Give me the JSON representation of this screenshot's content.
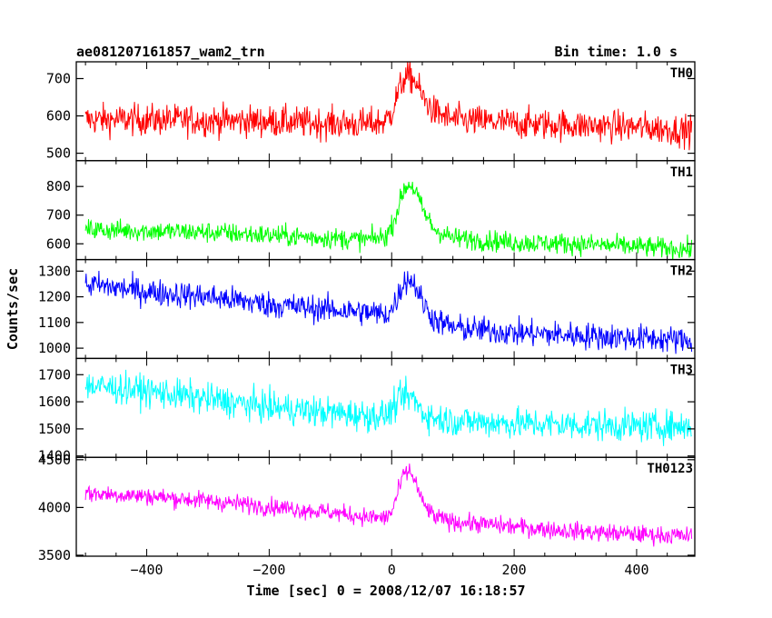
{
  "header": {
    "title": "ae081207161857_wam2_trn",
    "bin_time": "Bin time: 1.0 s"
  },
  "chart_data": {
    "type": "line",
    "xlabel": "Time [sec] 0 = 2008/12/07 16:18:57",
    "ylabel": "Counts/sec",
    "xlim": [
      -515,
      495
    ],
    "x_ticks": [
      -400,
      -200,
      0,
      200,
      400
    ],
    "x_tick_labels": [
      "−400",
      "−200",
      "0",
      "200",
      "400"
    ],
    "grid": false,
    "panels": [
      {
        "label": "TH0",
        "color": "#ff0000",
        "ylim": [
          480,
          745
        ],
        "ticks": [
          500,
          600,
          700
        ],
        "x": [
          -500,
          -400,
          -300,
          -200,
          -100,
          -40,
          -10,
          0,
          10,
          20,
          30,
          40,
          50,
          70,
          100,
          200,
          300,
          400,
          490
        ],
        "y": [
          590,
          590,
          588,
          585,
          580,
          578,
          585,
          610,
          660,
          700,
          705,
          690,
          650,
          610,
          590,
          580,
          575,
          570,
          560
        ],
        "noise": 40
      },
      {
        "label": "TH1",
        "color": "#00ff00",
        "ylim": [
          545,
          890
        ],
        "ticks": [
          600,
          700,
          800
        ],
        "x": [
          -500,
          -400,
          -300,
          -200,
          -100,
          -40,
          -10,
          0,
          10,
          20,
          30,
          40,
          50,
          70,
          100,
          200,
          300,
          400,
          490
        ],
        "y": [
          650,
          645,
          640,
          630,
          620,
          615,
          625,
          660,
          720,
          790,
          810,
          780,
          720,
          650,
          620,
          605,
          600,
          590,
          580
        ],
        "noise": 35
      },
      {
        "label": "TH2",
        "color": "#0000ff",
        "ylim": [
          960,
          1345
        ],
        "ticks": [
          1000,
          1100,
          1200,
          1300
        ],
        "x": [
          -500,
          -400,
          -300,
          -200,
          -100,
          -40,
          -10,
          0,
          10,
          20,
          30,
          40,
          50,
          70,
          100,
          200,
          300,
          400,
          490
        ],
        "y": [
          1250,
          1220,
          1200,
          1170,
          1150,
          1140,
          1130,
          1150,
          1200,
          1260,
          1270,
          1240,
          1180,
          1110,
          1080,
          1060,
          1050,
          1040,
          1030
        ],
        "noise": 50
      },
      {
        "label": "TH3",
        "color": "#00ffff",
        "ylim": [
          1395,
          1760
        ],
        "ticks": [
          1400,
          1500,
          1600,
          1700
        ],
        "x": [
          -500,
          -400,
          -300,
          -200,
          -100,
          -40,
          -10,
          0,
          10,
          20,
          30,
          40,
          50,
          70,
          100,
          200,
          300,
          400,
          490
        ],
        "y": [
          1660,
          1640,
          1610,
          1580,
          1560,
          1550,
          1550,
          1570,
          1600,
          1620,
          1620,
          1600,
          1560,
          1540,
          1530,
          1520,
          1515,
          1510,
          1510
        ],
        "noise": 55
      },
      {
        "label": "TH0123",
        "color": "#ff00ff",
        "ylim": [
          3490,
          4525
        ],
        "ticks": [
          3500,
          4000,
          4500
        ],
        "x": [
          -500,
          -400,
          -300,
          -200,
          -100,
          -40,
          -10,
          0,
          10,
          20,
          30,
          40,
          50,
          70,
          100,
          200,
          300,
          400,
          490
        ],
        "y": [
          4150,
          4120,
          4070,
          4010,
          3950,
          3900,
          3890,
          3950,
          4150,
          4350,
          4380,
          4250,
          4050,
          3900,
          3850,
          3800,
          3750,
          3720,
          3700
        ],
        "noise": 90
      }
    ]
  }
}
